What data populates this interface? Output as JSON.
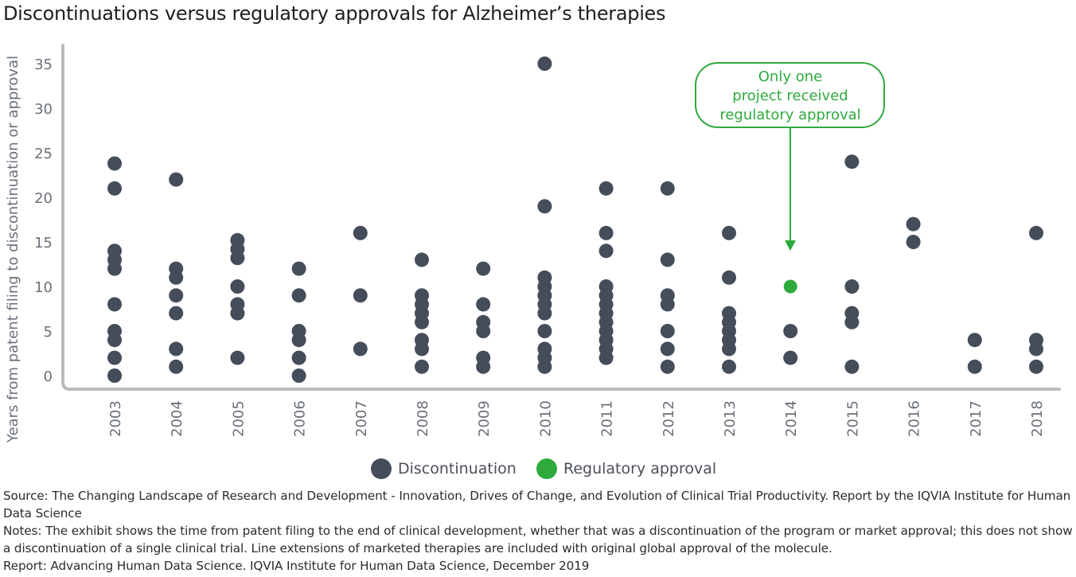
{
  "title": "Discontinuations versus regulatory approvals for Alzheimer’s therapies",
  "chart_data": {
    "type": "scatter",
    "title": "Discontinuations versus regulatory approvals for Alzheimer’s therapies",
    "xlabel": "",
    "ylabel": "Years from patent filing to discontinuation or approval",
    "ylim": [
      0,
      35
    ],
    "yticks": [
      0,
      5,
      10,
      15,
      20,
      25,
      30,
      35
    ],
    "categories": [
      "2003",
      "2004",
      "2005",
      "2006",
      "2007",
      "2008",
      "2009",
      "2010",
      "2011",
      "2012",
      "2013",
      "2014",
      "2015",
      "2016",
      "2017",
      "2018"
    ],
    "grid": false,
    "legend_position": "bottom",
    "series": [
      {
        "name": "Discontinuation",
        "color": "#454c5a",
        "points": [
          {
            "x": "2003",
            "y": 0
          },
          {
            "x": "2003",
            "y": 2
          },
          {
            "x": "2003",
            "y": 4
          },
          {
            "x": "2003",
            "y": 5
          },
          {
            "x": "2003",
            "y": 8
          },
          {
            "x": "2003",
            "y": 12
          },
          {
            "x": "2003",
            "y": 13
          },
          {
            "x": "2003",
            "y": 14
          },
          {
            "x": "2003",
            "y": 21
          },
          {
            "x": "2003",
            "y": 23.8
          },
          {
            "x": "2004",
            "y": 1
          },
          {
            "x": "2004",
            "y": 3
          },
          {
            "x": "2004",
            "y": 7
          },
          {
            "x": "2004",
            "y": 9
          },
          {
            "x": "2004",
            "y": 11
          },
          {
            "x": "2004",
            "y": 12
          },
          {
            "x": "2004",
            "y": 22
          },
          {
            "x": "2005",
            "y": 2
          },
          {
            "x": "2005",
            "y": 7
          },
          {
            "x": "2005",
            "y": 8
          },
          {
            "x": "2005",
            "y": 10
          },
          {
            "x": "2005",
            "y": 13.2
          },
          {
            "x": "2005",
            "y": 14.2
          },
          {
            "x": "2005",
            "y": 15.2
          },
          {
            "x": "2006",
            "y": 0
          },
          {
            "x": "2006",
            "y": 2
          },
          {
            "x": "2006",
            "y": 4
          },
          {
            "x": "2006",
            "y": 5
          },
          {
            "x": "2006",
            "y": 9
          },
          {
            "x": "2006",
            "y": 12
          },
          {
            "x": "2007",
            "y": 3
          },
          {
            "x": "2007",
            "y": 9
          },
          {
            "x": "2007",
            "y": 16
          },
          {
            "x": "2008",
            "y": 1
          },
          {
            "x": "2008",
            "y": 3
          },
          {
            "x": "2008",
            "y": 4
          },
          {
            "x": "2008",
            "y": 6
          },
          {
            "x": "2008",
            "y": 7
          },
          {
            "x": "2008",
            "y": 8
          },
          {
            "x": "2008",
            "y": 9
          },
          {
            "x": "2008",
            "y": 13
          },
          {
            "x": "2009",
            "y": 1
          },
          {
            "x": "2009",
            "y": 2
          },
          {
            "x": "2009",
            "y": 5
          },
          {
            "x": "2009",
            "y": 6
          },
          {
            "x": "2009",
            "y": 8
          },
          {
            "x": "2009",
            "y": 12
          },
          {
            "x": "2010",
            "y": 1
          },
          {
            "x": "2010",
            "y": 2
          },
          {
            "x": "2010",
            "y": 3
          },
          {
            "x": "2010",
            "y": 5
          },
          {
            "x": "2010",
            "y": 7
          },
          {
            "x": "2010",
            "y": 8
          },
          {
            "x": "2010",
            "y": 9
          },
          {
            "x": "2010",
            "y": 10
          },
          {
            "x": "2010",
            "y": 11
          },
          {
            "x": "2010",
            "y": 19
          },
          {
            "x": "2010",
            "y": 35
          },
          {
            "x": "2011",
            "y": 2
          },
          {
            "x": "2011",
            "y": 3
          },
          {
            "x": "2011",
            "y": 4
          },
          {
            "x": "2011",
            "y": 5
          },
          {
            "x": "2011",
            "y": 6
          },
          {
            "x": "2011",
            "y": 7
          },
          {
            "x": "2011",
            "y": 8
          },
          {
            "x": "2011",
            "y": 9
          },
          {
            "x": "2011",
            "y": 10
          },
          {
            "x": "2011",
            "y": 14
          },
          {
            "x": "2011",
            "y": 16
          },
          {
            "x": "2011",
            "y": 21
          },
          {
            "x": "2012",
            "y": 1
          },
          {
            "x": "2012",
            "y": 3
          },
          {
            "x": "2012",
            "y": 5
          },
          {
            "x": "2012",
            "y": 8
          },
          {
            "x": "2012",
            "y": 9
          },
          {
            "x": "2012",
            "y": 13
          },
          {
            "x": "2012",
            "y": 21
          },
          {
            "x": "2013",
            "y": 1
          },
          {
            "x": "2013",
            "y": 3
          },
          {
            "x": "2013",
            "y": 4
          },
          {
            "x": "2013",
            "y": 5
          },
          {
            "x": "2013",
            "y": 6
          },
          {
            "x": "2013",
            "y": 7
          },
          {
            "x": "2013",
            "y": 11
          },
          {
            "x": "2013",
            "y": 16
          },
          {
            "x": "2014",
            "y": 2
          },
          {
            "x": "2014",
            "y": 5
          },
          {
            "x": "2015",
            "y": 1
          },
          {
            "x": "2015",
            "y": 6
          },
          {
            "x": "2015",
            "y": 7
          },
          {
            "x": "2015",
            "y": 10
          },
          {
            "x": "2015",
            "y": 24
          },
          {
            "x": "2016",
            "y": 15
          },
          {
            "x": "2016",
            "y": 17
          },
          {
            "x": "2017",
            "y": 1
          },
          {
            "x": "2017",
            "y": 4
          },
          {
            "x": "2018",
            "y": 1
          },
          {
            "x": "2018",
            "y": 3
          },
          {
            "x": "2018",
            "y": 4
          },
          {
            "x": "2018",
            "y": 16
          }
        ]
      },
      {
        "name": "Regulatory approval",
        "color": "#2eaa3d",
        "points": [
          {
            "x": "2014",
            "y": 10
          }
        ]
      }
    ],
    "annotation": {
      "lines": [
        "Only one",
        "project received",
        "regulatory approval"
      ],
      "target": {
        "x": "2014",
        "y": 10
      },
      "color": "#2eaa3d"
    }
  },
  "legend": {
    "discontinuation_label": "Discontinuation",
    "approval_label": "Regulatory approval"
  },
  "notes": {
    "source": "Source: The Changing Landscape of Research and Development - Innovation, Drives of Change, and Evolution of Clinical Trial Productivity. Report by the IQVIA Institute for Human Data Science",
    "notes": "Notes: The exhibit shows the time from patent filing to the end of clinical development, whether that was a discontinuation of the program or market approval; this does not show a discontinuation of a single clinical trial. Line extensions of marketed therapies are included with original global approval of the molecule.",
    "report": "Report: Advancing Human Data Science. IQVIA Institute for Human Data Science, December 2019"
  }
}
